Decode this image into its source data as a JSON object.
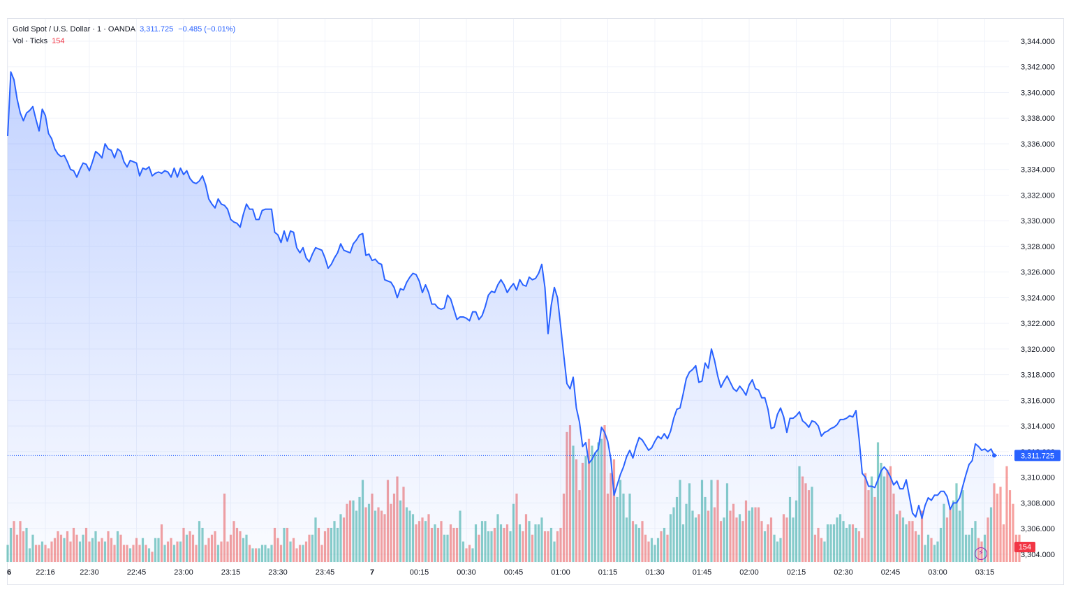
{
  "legend": {
    "symbol": "Gold Spot / U.S. Dollar · 1 · OANDA",
    "last": "3,311.725",
    "change": "−0.485 (−0.01%)",
    "vol_label": "Vol · Ticks",
    "vol_value": "154"
  },
  "price_tag": "3,311.725",
  "vol_tag": "154",
  "colors": {
    "line": "#2962ff",
    "up": "#26a69a",
    "down": "#ef5350",
    "tag_bg": "#2962ff",
    "vol_tag_bg": "#f23645"
  },
  "icons": [
    "lightning-icon"
  ],
  "chart_data": {
    "type": "area",
    "ylim": [
      3303,
      3345
    ],
    "y_ticks": [
      "3,344.000",
      "3,342.000",
      "3,340.000",
      "3,338.000",
      "3,336.000",
      "3,334.000",
      "3,332.000",
      "3,330.000",
      "3,328.000",
      "3,326.000",
      "3,324.000",
      "3,322.000",
      "3,320.000",
      "3,318.000",
      "3,316.000",
      "3,314.000",
      "3,312.000",
      "3,310.000",
      "3,308.000",
      "3,306.000",
      "3,304.000"
    ],
    "x_ticks": [
      "6",
      "22:16",
      "22:30",
      "22:45",
      "23:00",
      "23:15",
      "23:30",
      "23:45",
      "7",
      "00:15",
      "00:30",
      "00:45",
      "01:00",
      "01:15",
      "01:30",
      "01:45",
      "02:00",
      "02:15",
      "02:30",
      "02:45",
      "03:00",
      "03:15"
    ],
    "x_tick_minutes": [
      0,
      12,
      26,
      41,
      56,
      71,
      86,
      101,
      116,
      131,
      146,
      161,
      176,
      191,
      206,
      221,
      236,
      251,
      266,
      281,
      296,
      311
    ],
    "series": [
      {
        "values": [
          3336.6,
          3341.6,
          3341.0,
          3339.5,
          3338.4,
          3337.8,
          3338.4,
          3338.6,
          3338.9,
          3337.9,
          3337.0,
          3338.7,
          3338.2,
          3336.8,
          3336.4,
          3335.6,
          3335.2,
          3335.0,
          3335.1,
          3334.6,
          3334.0,
          3333.9,
          3333.4,
          3334.0,
          3334.5,
          3334.4,
          3333.9,
          3334.6,
          3335.4,
          3335.2,
          3334.9,
          3336.0,
          3335.6,
          3335.5,
          3334.9,
          3335.6,
          3335.4,
          3334.6,
          3334.2,
          3334.7,
          3334.6,
          3334.5,
          3333.5,
          3334.1,
          3334.0,
          3334.2,
          3333.5,
          3333.7,
          3333.8,
          3333.7,
          3333.9,
          3333.8,
          3333.4,
          3334.1,
          3333.4,
          3334.1,
          3333.6,
          3333.9,
          3333.3,
          3333.0,
          3332.9,
          3333.1,
          3333.5,
          3332.8,
          3331.7,
          3331.3,
          3331.0,
          3331.7,
          3331.3,
          3331.2,
          3330.9,
          3330.1,
          3329.9,
          3329.8,
          3329.5,
          3330.5,
          3331.3,
          3330.9,
          3330.9,
          3330.1,
          3330.1,
          3330.8,
          3330.9,
          3330.9,
          3330.9,
          3329.1,
          3328.9,
          3328.3,
          3329.2,
          3328.4,
          3329.2,
          3329.1,
          3327.9,
          3327.5,
          3327.9,
          3327.1,
          3326.8,
          3327.4,
          3327.9,
          3327.8,
          3327.7,
          3327.1,
          3326.3,
          3326.6,
          3327.1,
          3327.5,
          3328.2,
          3327.7,
          3327.6,
          3327.5,
          3328.2,
          3328.5,
          3328.9,
          3329.0,
          3327.3,
          3327.4,
          3326.9,
          3327.0,
          3326.7,
          3326.6,
          3325.4,
          3325.3,
          3325.2,
          3324.8,
          3324.0,
          3324.7,
          3324.6,
          3325.2,
          3325.6,
          3325.9,
          3325.8,
          3325.3,
          3324.4,
          3325.0,
          3324.4,
          3323.5,
          3323.5,
          3323.2,
          3323.1,
          3323.2,
          3324.2,
          3323.9,
          3323.1,
          3322.3,
          3322.5,
          3322.5,
          3322.4,
          3322.2,
          3322.9,
          3322.9,
          3322.3,
          3322.6,
          3323.3,
          3324.2,
          3324.5,
          3324.4,
          3325.0,
          3325.4,
          3325.0,
          3324.4,
          3324.8,
          3325.1,
          3324.6,
          3325.4,
          3325.0,
          3324.9,
          3325.6,
          3325.4,
          3325.5,
          3325.9,
          3326.6,
          3324.8,
          3321.2,
          3323.4,
          3324.8,
          3324.0,
          3321.8,
          3319.5,
          3317.3,
          3316.9,
          3317.8,
          3315.4,
          3314.3,
          3312.4,
          3312.7,
          3311.1,
          3311.4,
          3311.9,
          3312.2,
          3313.9,
          3313.5,
          3312.8,
          3311.4,
          3308.6,
          3309.4,
          3310.2,
          3310.8,
          3311.6,
          3312.1,
          3311.5,
          3312.4,
          3313.1,
          3312.9,
          3312.5,
          3312.1,
          3312.3,
          3312.8,
          3313.2,
          3313.0,
          3313.4,
          3313.0,
          3313.6,
          3314.6,
          3315.3,
          3315.4,
          3316.5,
          3317.7,
          3318.2,
          3318.4,
          3318.7,
          3317.4,
          3317.5,
          3318.9,
          3318.5,
          3320.0,
          3319.1,
          3317.9,
          3317.0,
          3317.5,
          3317.9,
          3317.4,
          3316.9,
          3316.7,
          3317.1,
          3316.8,
          3316.4,
          3317.2,
          3317.6,
          3316.9,
          3316.8,
          3316.2,
          3316.2,
          3315.3,
          3313.8,
          3313.9,
          3314.9,
          3315.4,
          3314.7,
          3313.5,
          3314.6,
          3314.6,
          3314.8,
          3315.1,
          3314.4,
          3314.2,
          3313.9,
          3314.4,
          3314.3,
          3314.0,
          3313.2,
          3313.5,
          3313.6,
          3313.8,
          3313.9,
          3314.1,
          3314.5,
          3314.5,
          3314.6,
          3314.8,
          3314.7,
          3315.2,
          3313.0,
          3310.3,
          3310.0,
          3309.3,
          3309.3,
          3309.2,
          3309.8,
          3310.5,
          3310.8,
          3310.5,
          3310.0,
          3309.4,
          3309.7,
          3309.1,
          3309.1,
          3309.8,
          3308.5,
          3307.2,
          3306.9,
          3307.8,
          3306.8,
          3307.8,
          3308.4,
          3308.2,
          3308.6,
          3308.6,
          3308.9,
          3308.9,
          3308.5,
          3307.5,
          3308.0,
          3308.0,
          3308.4,
          3309.3,
          3310.2,
          3311.0,
          3311.3,
          3312.6,
          3312.4,
          3312.1,
          3312.2,
          3312.0,
          3312.2,
          3311.7
        ]
      }
    ],
    "volume": [
      5,
      10,
      12,
      8,
      12,
      9,
      10,
      4,
      8,
      5,
      5,
      6,
      5,
      4,
      6,
      7,
      9,
      8,
      7,
      9,
      6,
      10,
      8,
      6,
      8,
      10,
      6,
      7,
      9,
      6,
      7,
      6,
      9,
      7,
      5,
      9,
      8,
      5,
      5,
      4,
      5,
      7,
      5,
      7,
      5,
      4,
      3,
      7,
      7,
      11,
      5,
      6,
      7,
      5,
      6,
      6,
      10,
      8,
      9,
      8,
      5,
      12,
      10,
      5,
      7,
      8,
      9,
      5,
      6,
      20,
      6,
      8,
      12,
      10,
      9,
      7,
      8,
      5,
      4,
      4,
      4,
      5,
      5,
      4,
      5,
      10,
      7,
      5,
      10,
      10,
      6,
      7,
      4,
      5,
      5,
      6,
      8,
      8,
      13,
      10,
      5,
      9,
      10,
      10,
      12,
      10,
      14,
      13,
      17,
      18,
      18,
      15,
      19,
      24,
      16,
      17,
      20,
      15,
      16,
      15,
      14,
      24,
      17,
      20,
      25,
      18,
      22,
      16,
      15,
      14,
      11,
      12,
      13,
      12,
      14,
      10,
      11,
      10,
      12,
      8,
      8,
      11,
      10,
      10,
      15,
      6,
      4,
      5,
      4,
      11,
      8,
      12,
      12,
      9,
      9,
      10,
      14,
      11,
      10,
      11,
      9,
      17,
      20,
      11,
      9,
      14,
      12,
      8,
      11,
      11,
      13,
      9,
      9,
      10,
      6,
      9,
      10,
      20,
      38,
      40,
      34,
      30,
      21,
      29,
      31,
      36,
      34,
      32,
      35,
      36,
      40,
      20,
      26,
      30,
      19,
      24,
      20,
      13,
      20,
      12,
      11,
      10,
      12,
      8,
      6,
      7,
      5,
      7,
      9,
      10,
      8,
      14,
      16,
      19,
      24,
      11,
      17,
      23,
      15,
      13,
      14,
      24,
      19,
      15,
      24,
      16,
      24,
      12,
      13,
      23,
      15,
      17,
      13,
      14,
      12,
      18,
      15,
      16,
      16,
      16,
      12,
      9,
      11,
      13,
      8,
      6,
      7,
      14,
      13,
      19,
      13,
      18,
      28,
      25,
      23,
      21,
      22,
      8,
      10,
      7,
      6,
      11,
      11,
      11,
      13,
      14,
      12,
      10,
      11,
      11,
      10,
      9,
      7,
      26,
      21,
      25,
      19,
      35,
      29,
      25,
      27,
      28,
      20,
      14,
      15,
      13,
      11,
      12,
      12,
      9,
      8,
      15,
      5,
      8,
      7,
      5,
      6,
      10,
      17,
      13,
      16,
      18,
      23,
      15,
      21,
      8,
      8,
      10,
      12,
      7,
      6,
      8,
      13,
      16,
      23,
      20,
      22,
      11,
      28,
      21,
      17,
      8,
      8
    ]
  }
}
